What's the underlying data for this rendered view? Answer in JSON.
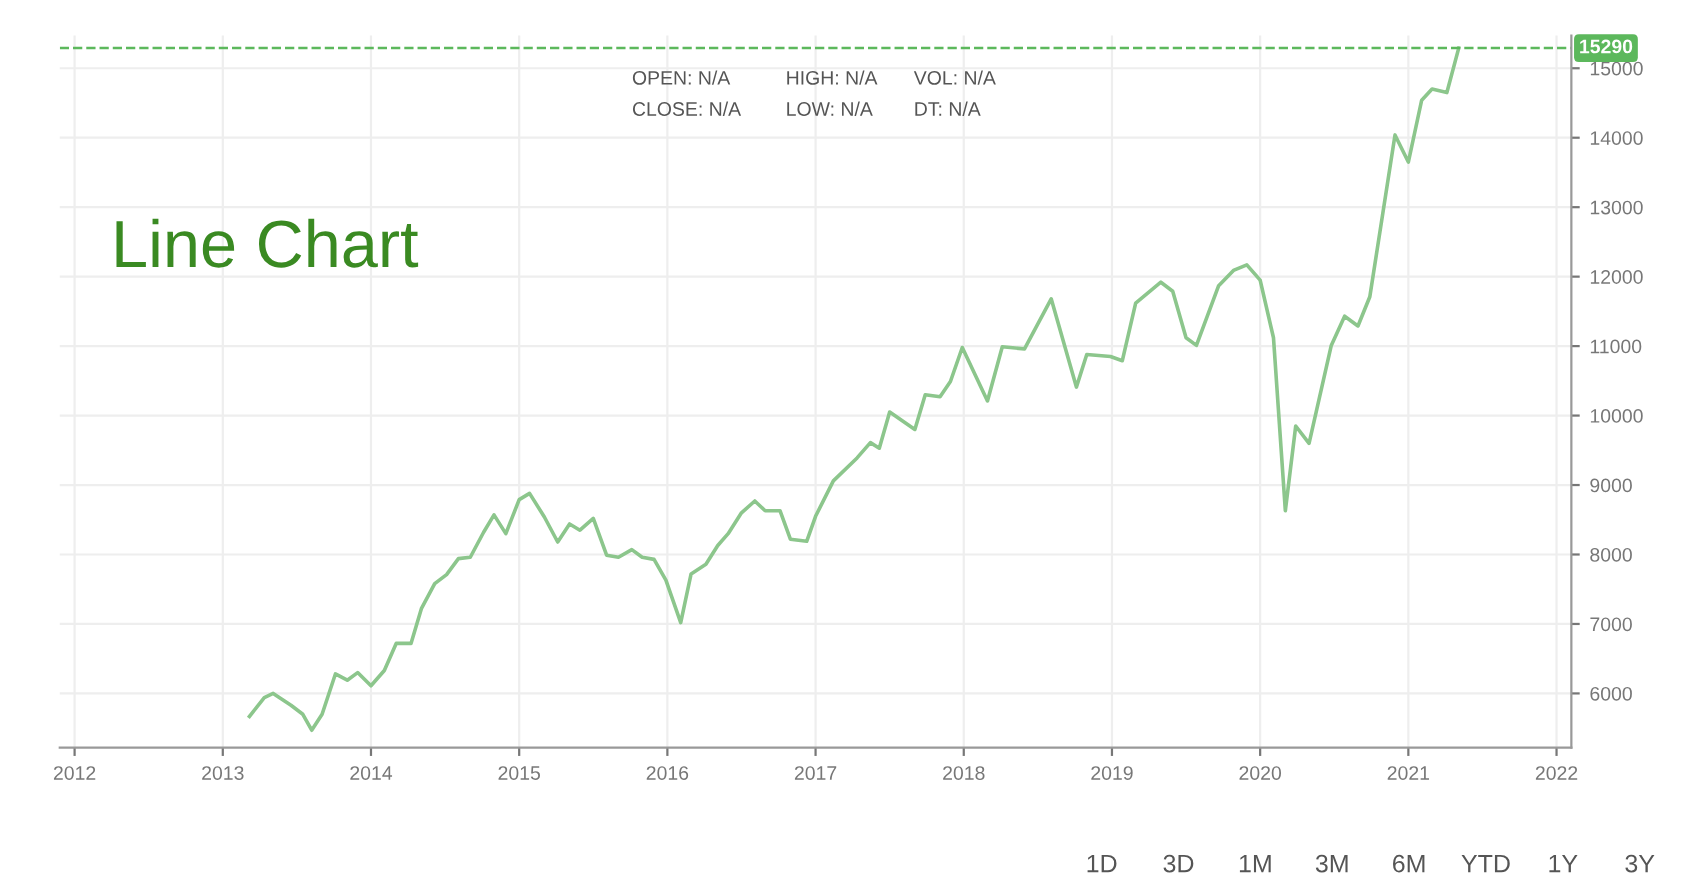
{
  "chart_data": {
    "type": "line",
    "x": [
      2013.18,
      2013.28,
      2013.34,
      2013.46,
      2013.54,
      2013.6,
      2013.67,
      2013.76,
      2013.84,
      2013.91,
      2014.0,
      2014.09,
      2014.17,
      2014.27,
      2014.34,
      2014.43,
      2014.51,
      2014.59,
      2014.67,
      2014.76,
      2014.83,
      2014.91,
      2015.0,
      2015.07,
      2015.17,
      2015.26,
      2015.34,
      2015.41,
      2015.5,
      2015.59,
      2015.67,
      2015.76,
      2015.83,
      2015.91,
      2015.99,
      2016.09,
      2016.16,
      2016.26,
      2016.34,
      2016.41,
      2016.5,
      2016.59,
      2016.66,
      2016.76,
      2016.83,
      2016.94,
      2017.0,
      2017.12,
      2017.28,
      2017.37,
      2017.43,
      2017.5,
      2017.67,
      2017.74,
      2017.84,
      2017.91,
      2017.99,
      2018.16,
      2018.26,
      2018.41,
      2018.59,
      2018.76,
      2018.83,
      2018.99,
      2019.07,
      2019.16,
      2019.33,
      2019.41,
      2019.5,
      2019.57,
      2019.72,
      2019.82,
      2019.91,
      2020.0,
      2020.09,
      2020.17,
      2020.24,
      2020.33,
      2020.48,
      2020.57,
      2020.66,
      2020.74,
      2020.91,
      2021.0,
      2021.09,
      2021.16,
      2021.26,
      2021.34
    ],
    "series": [
      {
        "color": "#8cc68c",
        "values": [
          5670,
          5940,
          6000,
          5830,
          5700,
          5470,
          5700,
          6280,
          6190,
          6300,
          6110,
          6330,
          6720,
          6720,
          7220,
          7580,
          7710,
          7940,
          7960,
          8320,
          8570,
          8300,
          8790,
          8880,
          8540,
          8180,
          8440,
          8350,
          8520,
          7990,
          7960,
          8070,
          7960,
          7930,
          7630,
          7020,
          7720,
          7860,
          8130,
          8300,
          8600,
          8770,
          8630,
          8630,
          8220,
          8190,
          8550,
          9060,
          9390,
          9610,
          9530,
          10050,
          9800,
          10300,
          10270,
          10490,
          10980,
          10210,
          10990,
          10960,
          11680,
          10410,
          10880,
          10850,
          10790,
          11620,
          11920,
          11790,
          11120,
          11010,
          11870,
          12090,
          12170,
          11950,
          11120,
          8630,
          9850,
          9600,
          11010,
          11430,
          11290,
          11710,
          14040,
          13650,
          14540,
          14700,
          14650,
          15290
        ]
      }
    ],
    "xlim": [
      2011.9,
      2022.1
    ],
    "xticks": [
      2012,
      2013,
      2014,
      2015,
      2016,
      2017,
      2018,
      2019,
      2020,
      2021,
      2022
    ],
    "ylim": [
      5220,
      15470
    ],
    "yticks": [
      6000,
      7000,
      8000,
      9000,
      10000,
      11000,
      12000,
      13000,
      14000,
      15000
    ],
    "grid": true,
    "marker": "none",
    "line_style": "solid",
    "ref_lines": [
      {
        "axis": "y",
        "value": 15290,
        "label": "15290",
        "color": "#5cb85c",
        "line_style": "dashed"
      }
    ],
    "annotations": [
      "Line Chart",
      "OPEN: N/A",
      "CLOSE: N/A",
      "HIGH: N/A",
      "LOW: N/A",
      "VOL: N/A",
      "DT: N/A",
      "1D",
      "3D",
      "1M",
      "3M",
      "6M",
      "YTD",
      "1Y",
      "3Y"
    ]
  }
}
